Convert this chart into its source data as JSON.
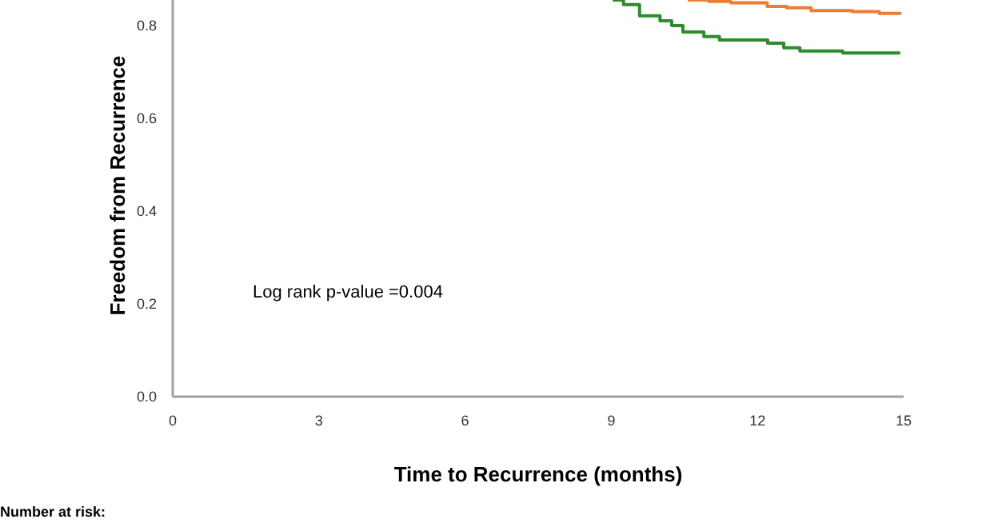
{
  "chart_data": {
    "type": "step",
    "xlabel": "Time to Recurrence (months)",
    "ylabel": "Freedom from Recurrence",
    "xlim": [
      0,
      15
    ],
    "xticks": [
      0,
      3,
      6,
      9,
      12,
      15
    ],
    "ylim": [
      0,
      0.855
    ],
    "yticks": [
      {
        "value": 0,
        "label": "0.0"
      },
      0.2,
      0.4,
      0.6,
      0.8
    ],
    "grid": false,
    "marker": "none",
    "line_style": "solid",
    "series": [
      {
        "color": "#ed7d31",
        "x": [
          10.57,
          11.0,
          11.45,
          12.2,
          12.6,
          13.1,
          13.95,
          14.5,
          14.93
        ],
        "values": [
          0.855,
          0.852,
          0.849,
          0.841,
          0.838,
          0.832,
          0.83,
          0.826,
          0.824
        ]
      },
      {
        "color": "#2e8b2e",
        "x": [
          9.03,
          9.25,
          9.58,
          10.0,
          10.24,
          10.47,
          10.9,
          11.22,
          12.21,
          12.54,
          12.87,
          13.75,
          14.93
        ],
        "values": [
          0.855,
          0.845,
          0.821,
          0.81,
          0.8,
          0.786,
          0.776,
          0.769,
          0.762,
          0.752,
          0.745,
          0.741,
          0.741
        ]
      }
    ],
    "annotations": [
      "Log rank p-value =0.004",
      "Number at risk:"
    ]
  }
}
